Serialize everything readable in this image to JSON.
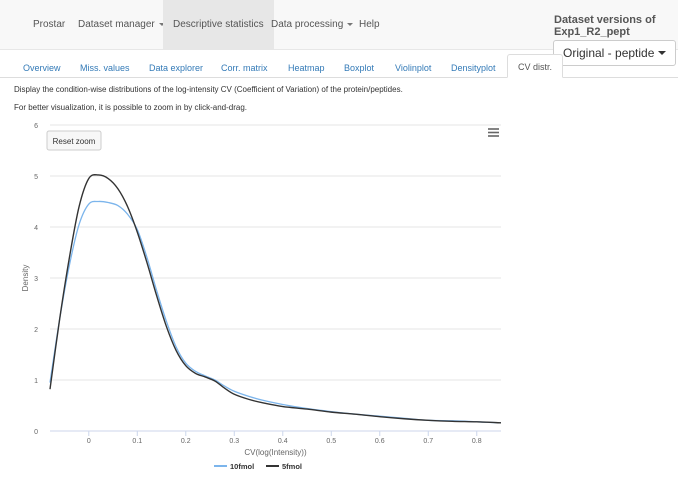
{
  "navbar": {
    "items": [
      {
        "label": "Prostar",
        "dropdown": false,
        "active": false
      },
      {
        "label": "Dataset manager",
        "dropdown": true,
        "active": false
      },
      {
        "label": "Descriptive statistics",
        "dropdown": false,
        "active": true
      },
      {
        "label": "Data processing",
        "dropdown": true,
        "active": false
      },
      {
        "label": "Help",
        "dropdown": false,
        "active": false
      }
    ],
    "version_title": "Dataset versions of Exp1_R2_pept",
    "version_select": "Original - peptide"
  },
  "tabs": [
    {
      "label": "Overview",
      "active": false
    },
    {
      "label": "Miss. values",
      "active": false
    },
    {
      "label": "Data explorer",
      "active": false
    },
    {
      "label": "Corr. matrix",
      "active": false
    },
    {
      "label": "Heatmap",
      "active": false
    },
    {
      "label": "Boxplot",
      "active": false
    },
    {
      "label": "Violinplot",
      "active": false
    },
    {
      "label": "Densityplot",
      "active": false
    },
    {
      "label": "CV distr.",
      "active": true
    }
  ],
  "description": {
    "line1": "Display the condition-wise distributions of the log-intensity CV (Coefficient of Variation) of the protein/peptides.",
    "line2": "For better visualization, it is possible to zoom in by click-and-drag."
  },
  "chart_controls": {
    "reset_zoom_label": "Reset zoom",
    "menu_icon": "hamburger-menu-icon"
  },
  "chart_data": {
    "type": "line",
    "title": "",
    "xlabel": "CV(log(Intensity))",
    "ylabel": "Density",
    "xlim": [
      -0.08,
      0.85
    ],
    "ylim": [
      0,
      6
    ],
    "x_ticks": [
      0,
      0.1,
      0.2,
      0.3,
      0.4,
      0.5,
      0.6,
      0.7,
      0.8
    ],
    "y_ticks": [
      0,
      1,
      2,
      3,
      4,
      5,
      6
    ],
    "grid": "horizontal",
    "legend_position": "bottom-center",
    "series": [
      {
        "name": "10fmol",
        "color": "#7cb5ec",
        "points": [
          [
            -0.08,
            0.95
          ],
          [
            -0.06,
            2.2
          ],
          [
            -0.04,
            3.25
          ],
          [
            -0.02,
            4.05
          ],
          [
            0.0,
            4.45
          ],
          [
            0.02,
            4.5
          ],
          [
            0.04,
            4.48
          ],
          [
            0.06,
            4.42
          ],
          [
            0.08,
            4.25
          ],
          [
            0.1,
            3.95
          ],
          [
            0.12,
            3.4
          ],
          [
            0.14,
            2.75
          ],
          [
            0.16,
            2.15
          ],
          [
            0.18,
            1.65
          ],
          [
            0.2,
            1.33
          ],
          [
            0.22,
            1.17
          ],
          [
            0.24,
            1.08
          ],
          [
            0.26,
            1.0
          ],
          [
            0.28,
            0.88
          ],
          [
            0.3,
            0.78
          ],
          [
            0.33,
            0.68
          ],
          [
            0.36,
            0.6
          ],
          [
            0.4,
            0.52
          ],
          [
            0.45,
            0.44
          ],
          [
            0.5,
            0.38
          ],
          [
            0.55,
            0.33
          ],
          [
            0.6,
            0.29
          ],
          [
            0.65,
            0.25
          ],
          [
            0.7,
            0.21
          ],
          [
            0.75,
            0.2
          ],
          [
            0.8,
            0.18
          ],
          [
            0.85,
            0.16
          ]
        ]
      },
      {
        "name": "5fmol",
        "color": "#333333",
        "points": [
          [
            -0.08,
            0.82
          ],
          [
            -0.06,
            2.2
          ],
          [
            -0.04,
            3.4
          ],
          [
            -0.02,
            4.4
          ],
          [
            0.0,
            4.95
          ],
          [
            0.02,
            5.02
          ],
          [
            0.04,
            4.95
          ],
          [
            0.06,
            4.75
          ],
          [
            0.08,
            4.4
          ],
          [
            0.1,
            3.9
          ],
          [
            0.12,
            3.3
          ],
          [
            0.14,
            2.65
          ],
          [
            0.16,
            2.05
          ],
          [
            0.18,
            1.58
          ],
          [
            0.2,
            1.28
          ],
          [
            0.22,
            1.13
          ],
          [
            0.24,
            1.06
          ],
          [
            0.26,
            0.98
          ],
          [
            0.28,
            0.84
          ],
          [
            0.3,
            0.72
          ],
          [
            0.33,
            0.62
          ],
          [
            0.36,
            0.55
          ],
          [
            0.4,
            0.48
          ],
          [
            0.45,
            0.43
          ],
          [
            0.5,
            0.37
          ],
          [
            0.55,
            0.33
          ],
          [
            0.6,
            0.28
          ],
          [
            0.65,
            0.24
          ],
          [
            0.7,
            0.21
          ],
          [
            0.75,
            0.19
          ],
          [
            0.8,
            0.18
          ],
          [
            0.85,
            0.16
          ]
        ]
      }
    ]
  }
}
